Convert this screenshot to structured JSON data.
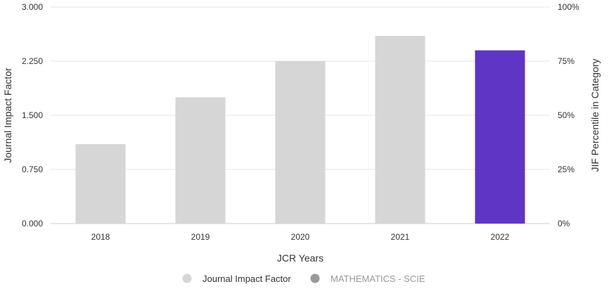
{
  "chart_data": {
    "type": "bar",
    "categories": [
      "2018",
      "2019",
      "2020",
      "2021",
      "2022"
    ],
    "series": [
      {
        "name": "Journal Impact Factor",
        "values": [
          1.1,
          1.75,
          2.25,
          2.6,
          2.4
        ],
        "color": "#d6d6d6",
        "highlight_index": 4,
        "highlight_color": "#5e35c4"
      }
    ],
    "secondary_series": [
      {
        "name": "MATHEMATICS - SCIE",
        "values": [],
        "color": "#999999"
      }
    ],
    "xlabel": "JCR Years",
    "ylabel": "Journal Impact Factor",
    "ylabel_right": "JIF Percentile in Category",
    "ylim": [
      0,
      3
    ],
    "ylim_right": [
      0,
      100
    ],
    "yticks": [
      "0.000",
      "0.750",
      "1.500",
      "2.250",
      "3.000"
    ],
    "yticks_right": [
      "0%",
      "25%",
      "50%",
      "75%",
      "100%"
    ],
    "grid": true,
    "legend_position": "bottom-center",
    "legend": [
      {
        "label": "Journal Impact Factor",
        "marker_color": "#d6d6d6",
        "text_color": "#333333"
      },
      {
        "label": "MATHEMATICS - SCIE",
        "marker_color": "#999999",
        "text_color": "#999999"
      }
    ]
  }
}
